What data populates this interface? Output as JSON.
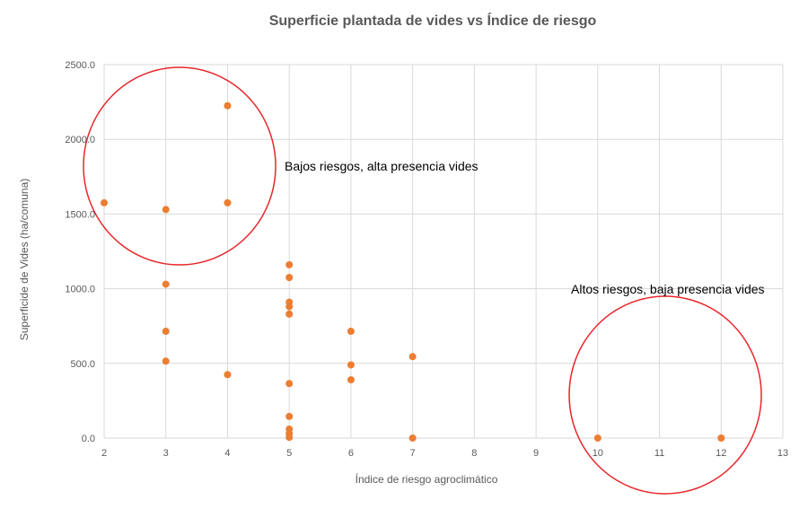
{
  "chart_data": {
    "type": "scatter",
    "title": "Superficie plantada de vides vs Índice de riesgo",
    "xlabel": "Índice de riesgo agroclimático",
    "ylabel": "Superficide de Vides (ha/comuna)",
    "xlim": [
      2,
      13
    ],
    "ylim": [
      0,
      2500
    ],
    "x_ticks": [
      "2",
      "3",
      "4",
      "5",
      "6",
      "7",
      "8",
      "9",
      "10",
      "11",
      "12",
      "13"
    ],
    "y_ticks": [
      "0.0",
      "500.0",
      "1000.0",
      "1500.0",
      "2000.0",
      "2500.0"
    ],
    "grid": true,
    "legend": "none",
    "marker_color": "#ed7d31",
    "points": [
      {
        "x": 2,
        "y": 1575
      },
      {
        "x": 3,
        "y": 1530
      },
      {
        "x": 3,
        "y": 1030
      },
      {
        "x": 3,
        "y": 715
      },
      {
        "x": 3,
        "y": 515
      },
      {
        "x": 4,
        "y": 2225
      },
      {
        "x": 4,
        "y": 1575
      },
      {
        "x": 4,
        "y": 425
      },
      {
        "x": 5,
        "y": 1160
      },
      {
        "x": 5,
        "y": 1075
      },
      {
        "x": 5,
        "y": 910
      },
      {
        "x": 5,
        "y": 880
      },
      {
        "x": 5,
        "y": 830
      },
      {
        "x": 5,
        "y": 365
      },
      {
        "x": 5,
        "y": 145
      },
      {
        "x": 5,
        "y": 60
      },
      {
        "x": 5,
        "y": 30
      },
      {
        "x": 5,
        "y": 5
      },
      {
        "x": 6,
        "y": 715
      },
      {
        "x": 6,
        "y": 490
      },
      {
        "x": 6,
        "y": 390
      },
      {
        "x": 7,
        "y": 545
      },
      {
        "x": 7,
        "y": 0
      },
      {
        "x": 10,
        "y": 0
      },
      {
        "x": 12,
        "y": 0
      }
    ],
    "annotations": [
      {
        "text": "Bajos riesgos, alta presencia vides",
        "circle_color": "#e8262b"
      },
      {
        "text": "Altos riesgos, baja presencia vides",
        "circle_color": "#e8262b"
      }
    ]
  }
}
